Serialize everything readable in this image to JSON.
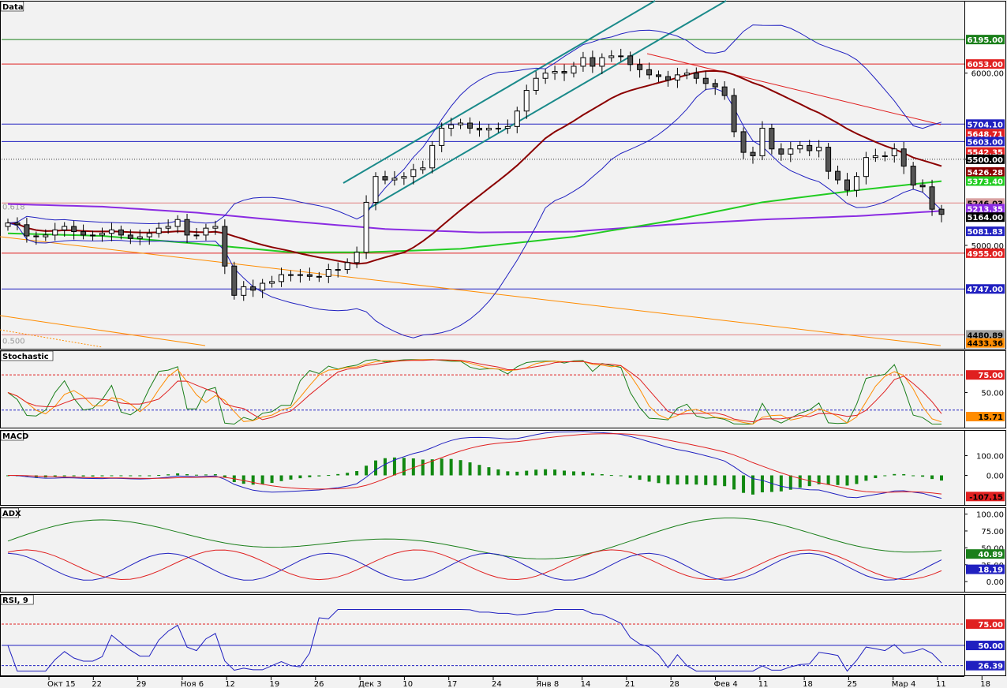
{
  "panels": {
    "price": {
      "title": "Data",
      "fib_618": "0.618",
      "fib_500": "0.500",
      "ticks": [
        {
          "v": 6000,
          "t": "6000.00"
        },
        {
          "v": 5500,
          "t": "5500.00"
        },
        {
          "v": 5000,
          "t": "5000.00"
        }
      ],
      "price_labels": [
        {
          "v": 6195,
          "t": "6195.00",
          "bg": "#1a7f1a",
          "fg": "#ffffff"
        },
        {
          "v": 6053,
          "t": "6053.00",
          "bg": "#e02020",
          "fg": "#ffffff"
        },
        {
          "v": 5704.1,
          "t": "5704.10",
          "bg": "#2020c0",
          "fg": "#ffffff"
        },
        {
          "v": 5648.71,
          "t": "5648.71",
          "bg": "#e02020",
          "fg": "#ffffff"
        },
        {
          "v": 5603,
          "t": "5603.00",
          "bg": "#2020c0",
          "fg": "#ffffff"
        },
        {
          "v": 5542.35,
          "t": "5542.35",
          "bg": "#e02020",
          "fg": "#ffffff"
        },
        {
          "v": 5500,
          "t": "5500.00",
          "bg": "#000000",
          "fg": "#ffffff"
        },
        {
          "v": 5426.28,
          "t": "5426.28",
          "bg": "#8b0000",
          "fg": "#ffffff"
        },
        {
          "v": 5373.4,
          "t": "5373.40",
          "bg": "#22cc22",
          "fg": "#ffffff"
        },
        {
          "v": 5246.03,
          "t": "5246.03",
          "bg": "#d8a0a0",
          "fg": "#000000"
        },
        {
          "v": 5213.35,
          "t": "5213.35",
          "bg": "#8a2be2",
          "fg": "#ffffff"
        },
        {
          "v": 5164,
          "t": "5164.00",
          "bg": "#000000",
          "fg": "#ffffff"
        },
        {
          "v": 5081.83,
          "t": "5081.83",
          "bg": "#2020c0",
          "fg": "#ffffff"
        },
        {
          "v": 4955,
          "t": "4955.00",
          "bg": "#e02020",
          "fg": "#ffffff"
        },
        {
          "v": 4747,
          "t": "4747.00",
          "bg": "#2020c0",
          "fg": "#ffffff"
        },
        {
          "v": 4480.89,
          "t": "4480.89",
          "bg": "#a0a0a0",
          "fg": "#000000"
        },
        {
          "v": 4433.36,
          "t": "4433.36",
          "bg": "#ff8c00",
          "fg": "#000000"
        }
      ]
    },
    "stochastic": {
      "title": "Stochastic",
      "ticks": [
        {
          "v": 50,
          "t": "50.00"
        }
      ],
      "labels": [
        {
          "v": 75,
          "t": "75.00",
          "bg": "#e02020",
          "fg": "#ffffff"
        },
        {
          "v": 15.71,
          "t": "15.71",
          "bg": "#ff8c00",
          "fg": "#000000"
        }
      ]
    },
    "macd": {
      "title": "MACD",
      "ticks": [
        {
          "v": 100,
          "t": "100.00"
        },
        {
          "v": 0,
          "t": "0.00"
        }
      ],
      "labels": [
        {
          "v": -107.15,
          "t": "-107.15",
          "bg": "#e02020",
          "fg": "#000000"
        }
      ]
    },
    "adx": {
      "title": "ADX",
      "ticks": [
        {
          "v": 100,
          "t": "100.00"
        },
        {
          "v": 75,
          "t": "75.00"
        },
        {
          "v": 50,
          "t": "50.00"
        },
        {
          "v": 25,
          "t": "25.00"
        },
        {
          "v": 0,
          "t": "0.00"
        }
      ],
      "labels": [
        {
          "v": 40.89,
          "t": "40.89",
          "bg": "#1a7f1a",
          "fg": "#ffffff"
        },
        {
          "v": 18.19,
          "t": "18.19",
          "bg": "#2020c0",
          "fg": "#ffffff"
        }
      ]
    },
    "rsi": {
      "title": "RSI, 9",
      "labels": [
        {
          "v": 75,
          "t": "75.00",
          "bg": "#e02020",
          "fg": "#ffffff"
        },
        {
          "v": 50,
          "t": "50.00",
          "bg": "#2020c0",
          "fg": "#ffffff"
        },
        {
          "v": 26.39,
          "t": "26.39",
          "bg": "#2020c0",
          "fg": "#ffffff"
        }
      ]
    }
  },
  "x_axis": [
    "Окт 15",
    "22",
    "29",
    "Ноя 6",
    "12",
    "19",
    "26",
    "Дек 3",
    "10",
    "17",
    "24",
    "Янв 8",
    "14",
    "21",
    "28",
    "Фев 4",
    "11",
    "18",
    "25",
    "Мар 4",
    "11",
    "18"
  ],
  "chart_data": {
    "type": "candlestick",
    "close": [
      5130,
      5120,
      5055,
      5050,
      5060,
      5090,
      5110,
      5080,
      5060,
      5060,
      5070,
      5090,
      5060,
      5040,
      5050,
      5070,
      5100,
      5110,
      5150,
      5060,
      5060,
      5100,
      5110,
      4880,
      4710,
      4760,
      4740,
      4780,
      4790,
      4830,
      4830,
      4830,
      4820,
      4820,
      4860,
      4860,
      4900,
      4960,
      5250,
      5400,
      5380,
      5390,
      5400,
      5440,
      5450,
      5580,
      5680,
      5700,
      5710,
      5680,
      5670,
      5680,
      5680,
      5690,
      5780,
      5900,
      5970,
      6000,
      6010,
      6000,
      6040,
      6090,
      6040,
      6090,
      6100,
      6100,
      6050,
      6020,
      5990,
      5980,
      5960,
      5990,
      6000,
      5970,
      5940,
      5920,
      5870,
      5660,
      5540,
      5520,
      5680,
      5560,
      5530,
      5560,
      5580,
      5550,
      5570,
      5430,
      5380,
      5320,
      5400,
      5510,
      5520,
      5520,
      5560,
      5460,
      5350,
      5340,
      5210,
      5180
    ],
    "horizontal_levels": [
      6195,
      6053,
      5704.1,
      5603,
      5500,
      4955,
      4747
    ],
    "stochastic_levels": [
      75,
      25
    ],
    "rsi_levels": [
      75,
      50,
      30
    ],
    "last_values": {
      "close": 5164,
      "macd": -107.15,
      "adx": 40.89,
      "di": 18.19,
      "rsi": 26.39,
      "stochastic": 15.71
    }
  },
  "colors": {
    "bull": "#ffffff",
    "bear": "#555555",
    "ma_fast": "#8b0000",
    "ma_mid": "#22cc22",
    "ma_slow": "#8a2be2",
    "bollinger": "#2020c0",
    "channel": "#1a8a8a",
    "fib": "#e08080"
  }
}
